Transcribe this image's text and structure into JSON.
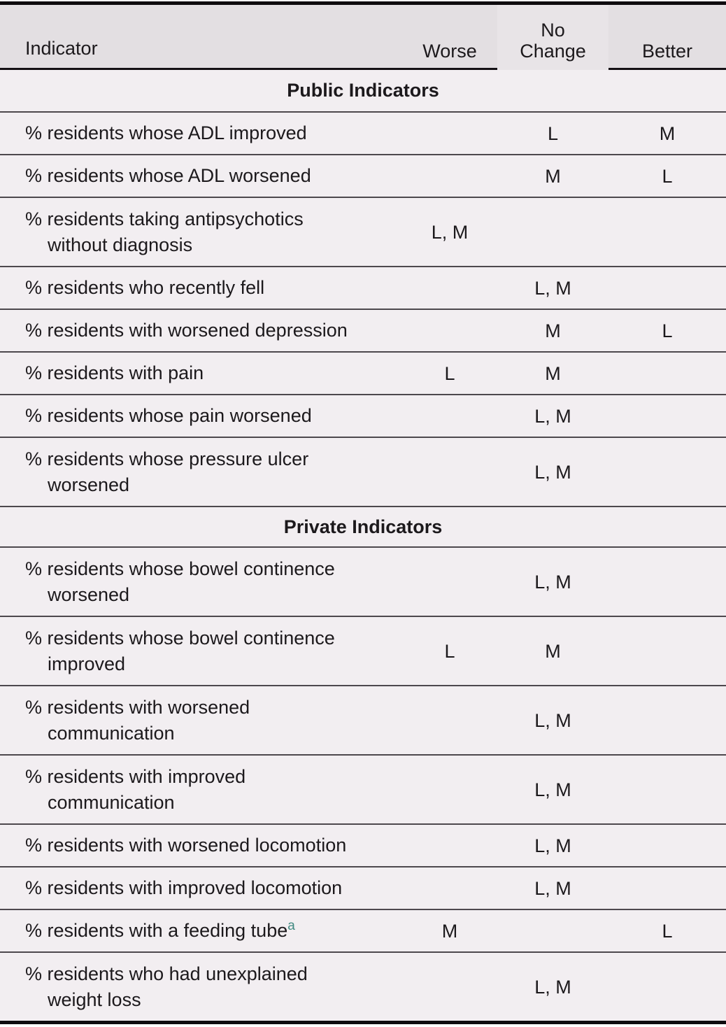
{
  "colors": {
    "header_bg": "#e3dfe2",
    "row_bg": "#f2eef1",
    "heavy_rule": "#0e0b0e",
    "light_rule": "#4d484d",
    "superscript_accent": "#418a82",
    "text": "#1c191c"
  },
  "header": {
    "col_indicator": "Indicator",
    "col_worse": "Worse",
    "col_no_change_line1": "No",
    "col_no_change_line2": "Change",
    "col_better": "Better"
  },
  "sections": [
    {
      "title": "Public Indicators",
      "rows": [
        {
          "label1": "% residents whose ADL improved",
          "worse": "",
          "no_change": "L",
          "better": "M"
        },
        {
          "label1": "% residents whose ADL worsened",
          "worse": "",
          "no_change": "M",
          "better": "L"
        },
        {
          "label1": "% residents taking antipsychotics",
          "label2": "without diagnosis",
          "worse": "L, M",
          "no_change": "",
          "better": ""
        },
        {
          "label1": "% residents who recently fell",
          "worse": "",
          "no_change": "L, M",
          "better": ""
        },
        {
          "label1": "% residents with worsened depression",
          "worse": "",
          "no_change": "M",
          "better": "L"
        },
        {
          "label1": "% residents with pain",
          "worse": "L",
          "no_change": "M",
          "better": ""
        },
        {
          "label1": "% residents whose pain worsened",
          "worse": "",
          "no_change": "L, M",
          "better": ""
        },
        {
          "label1": "% residents whose pressure ulcer",
          "label2": "worsened",
          "worse": "",
          "no_change": "L, M",
          "better": ""
        }
      ]
    },
    {
      "title": "Private Indicators",
      "rows": [
        {
          "label1": "% residents whose bowel continence",
          "label2": "worsened",
          "worse": "",
          "no_change": "L, M",
          "better": ""
        },
        {
          "label1": "% residents whose bowel continence",
          "label2": "improved",
          "worse": "L",
          "no_change": "M",
          "better": ""
        },
        {
          "label1": "% residents with worsened",
          "label2": "communication",
          "worse": "",
          "no_change": "L, M",
          "better": ""
        },
        {
          "label1": "% residents with improved",
          "label2": "communication",
          "worse": "",
          "no_change": "L, M",
          "better": ""
        },
        {
          "label1": "% residents with worsened locomotion",
          "worse": "",
          "no_change": "L, M",
          "better": ""
        },
        {
          "label1": "% residents with improved locomotion",
          "worse": "",
          "no_change": "L, M",
          "better": ""
        },
        {
          "label1": "% residents with a feeding tube",
          "sup": "a",
          "worse": "M",
          "no_change": "",
          "better": "L"
        },
        {
          "label1": "% residents who had unexplained",
          "label2": "weight loss",
          "worse": "",
          "no_change": "L, M",
          "better": ""
        }
      ]
    }
  ]
}
